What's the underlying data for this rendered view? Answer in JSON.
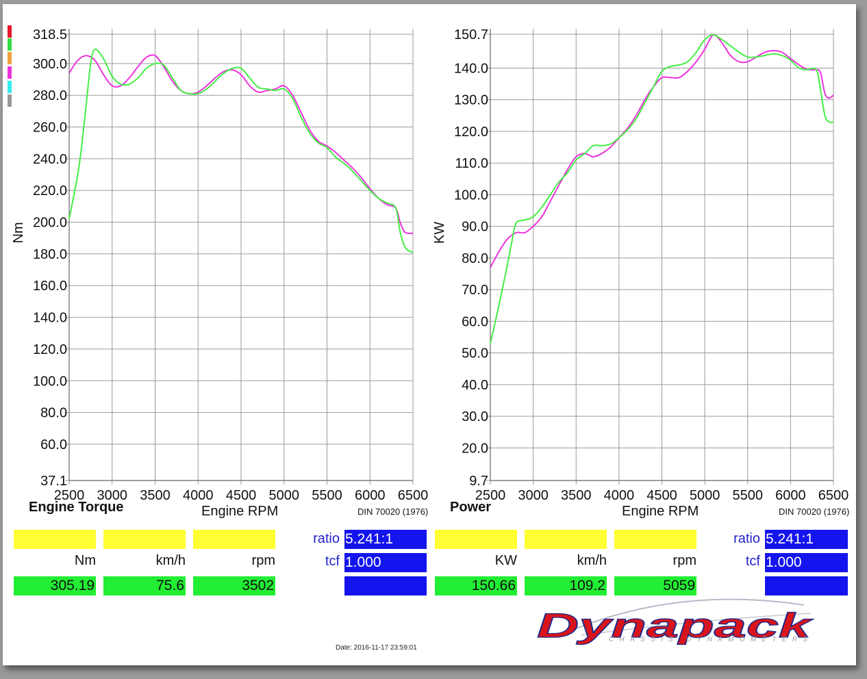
{
  "colors": {
    "run_a": "#ee33dd",
    "run_b": "#44ee44",
    "grid": "#999999",
    "value_box_green": "#22ee33",
    "value_box_yellow": "#ffff33",
    "value_box_blue": "#1414ee",
    "label_blue": "#2323cc",
    "logo_red": "#d8141c",
    "logo_blue": "#1a2a8a"
  },
  "legend_swatches": [
    "#e8142c",
    "#33dd44",
    "#f0a040",
    "#ee33dd",
    "#33eeee",
    "#999999"
  ],
  "chart_data": [
    {
      "type": "line",
      "title": "Engine Torque",
      "subtitle": "DIN 70020 (1976)",
      "xlabel": "Engine RPM",
      "ylabel": "Nm",
      "xlim": [
        2500,
        6500
      ],
      "ylim": [
        37.1,
        318.5
      ],
      "x_ticks": [
        "2500",
        "3000",
        "3500",
        "4000",
        "4500",
        "5000",
        "5500",
        "6000",
        "6500"
      ],
      "y_ticks": [
        "318.5",
        "300.0",
        "280.0",
        "260.0",
        "240.0",
        "220.0",
        "200.0",
        "180.0",
        "160.0",
        "140.0",
        "120.0",
        "100.0",
        "80.0",
        "60.0",
        "37.1"
      ],
      "grid": true,
      "series": [
        {
          "color": "#ee33dd",
          "x": [
            2500,
            2600,
            2700,
            2800,
            2900,
            3000,
            3100,
            3200,
            3300,
            3400,
            3500,
            3600,
            3700,
            3800,
            3900,
            4000,
            4100,
            4200,
            4300,
            4400,
            4500,
            4600,
            4700,
            4800,
            4900,
            5000,
            5100,
            5200,
            5300,
            5400,
            5500,
            5600,
            5700,
            5800,
            5900,
            6000,
            6100,
            6200,
            6300,
            6350,
            6400,
            6450,
            6500
          ],
          "y": [
            294,
            302,
            305,
            302,
            293,
            286,
            286,
            291,
            298,
            304,
            305,
            298,
            289,
            283,
            281,
            282,
            286,
            291,
            295,
            296,
            293,
            286,
            282,
            283,
            284,
            286,
            280,
            269,
            258,
            251,
            248,
            244,
            239,
            234,
            228,
            221,
            215,
            211,
            209,
            200,
            194,
            193,
            193
          ]
        },
        {
          "color": "#44ee44",
          "x": [
            2500,
            2600,
            2650,
            2700,
            2750,
            2800,
            2900,
            3000,
            3100,
            3200,
            3300,
            3400,
            3500,
            3600,
            3700,
            3800,
            3900,
            4000,
            4100,
            4200,
            4300,
            4400,
            4500,
            4600,
            4700,
            4800,
            4900,
            5000,
            5100,
            5200,
            5300,
            5400,
            5500,
            5600,
            5700,
            5800,
            5900,
            6000,
            6100,
            6200,
            6300,
            6350,
            6400,
            6450,
            6500
          ],
          "y": [
            202,
            230,
            250,
            275,
            300,
            309,
            303,
            292,
            287,
            287,
            291,
            297,
            300,
            299,
            291,
            283,
            281,
            281,
            284,
            289,
            294,
            297,
            297,
            291,
            285,
            284,
            283,
            284,
            278,
            266,
            256,
            250,
            247,
            241,
            237,
            232,
            226,
            220,
            215,
            212,
            209,
            194,
            185,
            182,
            181
          ]
        }
      ]
    },
    {
      "type": "line",
      "title": "Power",
      "subtitle": "DIN 70020 (1976)",
      "xlabel": "Engine RPM",
      "ylabel": "KW",
      "xlim": [
        2500,
        6500
      ],
      "ylim": [
        9.7,
        150.7
      ],
      "x_ticks": [
        "2500",
        "3000",
        "3500",
        "4000",
        "4500",
        "5000",
        "5500",
        "6000",
        "6500"
      ],
      "y_ticks": [
        "150.7",
        "140.0",
        "130.0",
        "120.0",
        "110.0",
        "100.0",
        "90.0",
        "80.0",
        "70.0",
        "60.0",
        "50.0",
        "40.0",
        "30.0",
        "20.0",
        "9.7"
      ],
      "grid": true,
      "series": [
        {
          "color": "#ee33dd",
          "x": [
            2500,
            2600,
            2700,
            2800,
            2900,
            3000,
            3100,
            3200,
            3300,
            3400,
            3500,
            3600,
            3700,
            3800,
            3900,
            4000,
            4100,
            4200,
            4300,
            4400,
            4500,
            4600,
            4700,
            4800,
            4900,
            5000,
            5100,
            5200,
            5300,
            5400,
            5500,
            5600,
            5700,
            5800,
            5900,
            6000,
            6100,
            6200,
            6300,
            6350,
            6400,
            6450,
            6500
          ],
          "y": [
            77,
            82,
            86,
            88,
            88,
            90,
            93,
            98,
            103,
            108,
            112,
            113,
            112,
            113,
            115,
            118,
            121,
            125,
            130,
            134,
            137,
            137,
            137,
            139,
            142,
            146,
            150.5,
            148,
            144,
            142,
            142,
            143.5,
            145,
            145.5,
            145,
            143,
            141,
            139.5,
            139.5,
            138.5,
            132,
            130.5,
            131.5
          ]
        },
        {
          "color": "#44ee44",
          "x": [
            2500,
            2600,
            2700,
            2750,
            2800,
            2900,
            3000,
            3100,
            3200,
            3300,
            3400,
            3500,
            3600,
            3700,
            3800,
            3900,
            4000,
            4100,
            4200,
            4300,
            4400,
            4500,
            4600,
            4700,
            4800,
            4900,
            5000,
            5100,
            5200,
            5300,
            5400,
            5500,
            5600,
            5700,
            5800,
            5900,
            6000,
            6100,
            6200,
            6300,
            6350,
            6400,
            6450,
            6500
          ],
          "y": [
            53,
            65,
            78,
            85,
            91,
            92,
            93,
            96,
            100,
            104,
            107,
            111,
            113,
            115.5,
            115.5,
            116,
            118,
            120.5,
            124,
            129,
            134,
            139,
            140.5,
            141,
            142,
            145,
            149,
            150.5,
            149,
            147,
            145,
            143.5,
            143.5,
            144,
            144.5,
            144,
            142.5,
            140,
            139.5,
            139.5,
            133,
            125,
            123,
            123
          ]
        }
      ]
    }
  ],
  "panels": [
    {
      "title": "Engine Torque",
      "xlabel": "Engine RPM",
      "standard": "DIN 70020 (1976)",
      "units": [
        "Nm",
        "km/h",
        "rpm"
      ],
      "values": [
        "305.19",
        "75.6",
        "3502"
      ],
      "ratio_label": "ratio",
      "ratio_value": "5.241:1",
      "tcf_label": "tcf",
      "tcf_value": "1.000"
    },
    {
      "title": "Power",
      "xlabel": "Engine RPM",
      "standard": "DIN 70020 (1976)",
      "units": [
        "KW",
        "km/h",
        "rpm"
      ],
      "values": [
        "150.66",
        "109.2",
        "5059"
      ],
      "ratio_label": "ratio",
      "ratio_value": "5.241:1",
      "tcf_label": "tcf",
      "tcf_value": "1.000"
    }
  ],
  "logo": {
    "name": "Dynapack",
    "tagline": "CHASSIS DYNAMOMETERS"
  },
  "footer": {
    "date": "Date:  2016-11-17 23:59:01"
  }
}
